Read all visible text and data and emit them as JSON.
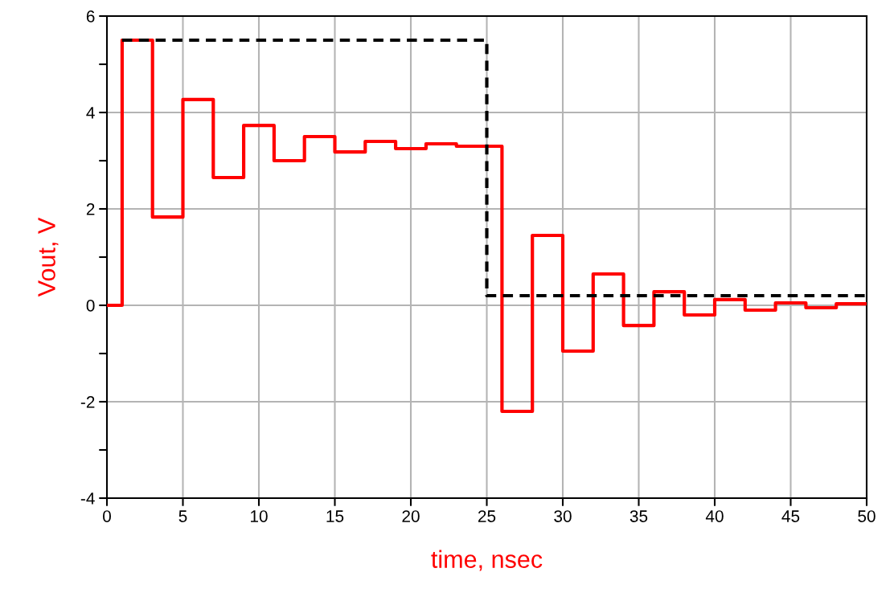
{
  "chart_data": {
    "type": "step",
    "xlabel": "time, nsec",
    "ylabel": "Vout, V",
    "xlim": [
      0,
      50
    ],
    "xticks": [
      0,
      5,
      10,
      15,
      20,
      25,
      30,
      35,
      40,
      45,
      50
    ],
    "ylim": [
      -4,
      6
    ],
    "yticks": [
      -4,
      {
        "value": -3,
        "label": null
      },
      -2,
      {
        "value": -1,
        "label": null
      },
      0,
      {
        "value": 1,
        "label": null
      },
      2,
      {
        "value": 3,
        "label": null
      },
      4,
      {
        "value": 5,
        "label": null
      },
      6
    ],
    "grid": true,
    "legend": false,
    "series": [
      {
        "color": "#ff0000",
        "line_style": "solid",
        "x": [
          0,
          1,
          3,
          5,
          7,
          9,
          11,
          13,
          15,
          17,
          19,
          21,
          23,
          26,
          28,
          30,
          32,
          34,
          36,
          38,
          40,
          42,
          44,
          46,
          48,
          50
        ],
        "values": [
          0,
          5.5,
          1.83,
          4.27,
          2.65,
          3.73,
          3.0,
          3.5,
          3.18,
          3.4,
          3.25,
          3.35,
          3.3,
          -2.2,
          1.45,
          -0.95,
          0.65,
          -0.42,
          0.28,
          -0.2,
          0.12,
          -0.1,
          0.05,
          -0.05,
          0.03,
          0.03
        ]
      },
      {
        "color": "#000000",
        "line_style": "dashed",
        "x": [
          1,
          25,
          50
        ],
        "values": [
          5.5,
          0.2,
          0.2
        ]
      }
    ]
  }
}
